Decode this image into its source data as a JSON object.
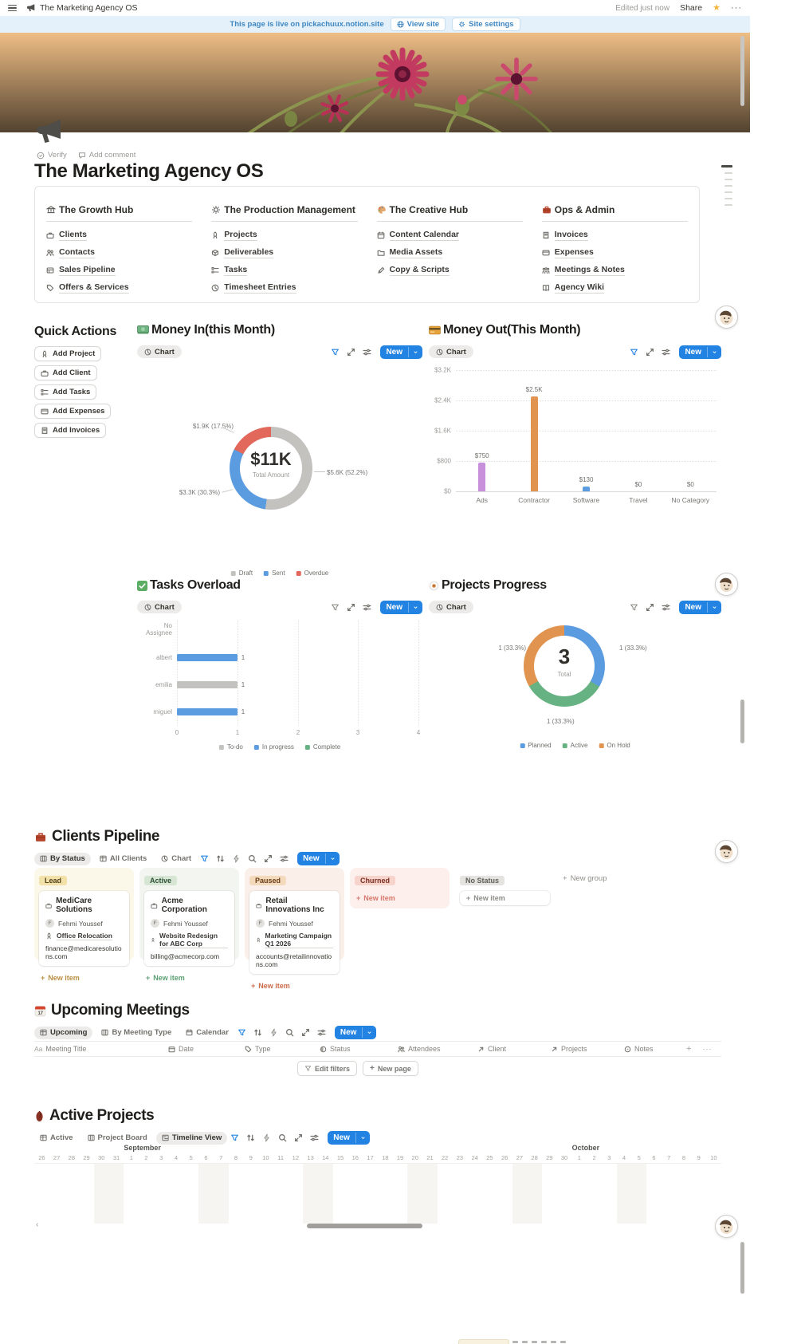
{
  "topbar": {
    "title": "The Marketing Agency OS",
    "edited": "Edited just now",
    "share": "Share",
    "more": "···"
  },
  "banner": {
    "message": "This page is live on pickachuux.notion.site",
    "view_site": "View site",
    "site_settings": "Site settings"
  },
  "page_header": {
    "verify": "Verify",
    "add_comment": "Add comment",
    "title": "The Marketing Agency OS"
  },
  "toc": {
    "columns": [
      {
        "icon": "bank-icon",
        "title": "The Growth Hub",
        "items": [
          {
            "icon": "briefcase-icon",
            "label": "Clients"
          },
          {
            "icon": "people-icon",
            "label": "Contacts"
          },
          {
            "icon": "pipeline-icon",
            "label": "Sales Pipeline"
          },
          {
            "icon": "tag-icon",
            "label": "Offers & Services"
          }
        ]
      },
      {
        "icon": "gear-icon",
        "title": "The Production Management",
        "items": [
          {
            "icon": "rocket-icon",
            "label": "Projects"
          },
          {
            "icon": "box-icon",
            "label": "Deliverables"
          },
          {
            "icon": "checklist-icon",
            "label": "Tasks"
          },
          {
            "icon": "clock-icon",
            "label": "Timesheet Entries"
          }
        ]
      },
      {
        "icon": "palette-icon",
        "title": "The Creative Hub",
        "items": [
          {
            "icon": "calendar-icon",
            "label": "Content Calendar"
          },
          {
            "icon": "folder-icon",
            "label": "Media Assets"
          },
          {
            "icon": "pen-icon",
            "label": "Copy & Scripts"
          }
        ]
      },
      {
        "icon": "briefcase-red-icon",
        "title": "Ops & Admin",
        "items": [
          {
            "icon": "receipt-icon",
            "label": "Invoices"
          },
          {
            "icon": "card-icon",
            "label": "Expenses"
          },
          {
            "icon": "meeting-icon",
            "label": "Meetings & Notes"
          },
          {
            "icon": "book-icon",
            "label": "Agency Wiki"
          }
        ]
      }
    ]
  },
  "quick_actions": {
    "title": "Quick Actions",
    "buttons": [
      {
        "icon": "rocket-icon",
        "label": "Add Project"
      },
      {
        "icon": "briefcase-icon",
        "label": "Add Client"
      },
      {
        "icon": "checklist-icon",
        "label": "Add Tasks"
      },
      {
        "icon": "card-icon",
        "label": "Add Expenses"
      },
      {
        "icon": "receipt-icon",
        "label": "Add Invoices"
      }
    ]
  },
  "ui": {
    "chart_view": "Chart",
    "new": "New",
    "new_item": "New item",
    "new_group": "New group",
    "edit_filters": "Edit filters",
    "new_page": "New page",
    "plus": "+",
    "accent": "#2383e2"
  },
  "blocks": {
    "money_in": {
      "title": "Money In(this Month)"
    },
    "money_out": {
      "title": "Money Out(This Month)"
    },
    "tasks": {
      "title": "Tasks Overload"
    },
    "projects": {
      "title": "Projects Progress"
    }
  },
  "chart_data": [
    {
      "type": "donut",
      "title": "Money In(this Month)",
      "center": {
        "value": "$11K",
        "label": "Total Amount"
      },
      "slices": [
        {
          "name": "Draft",
          "value": "$5.6K",
          "pct": 52.2,
          "label": "$5.6K (52.2%)",
          "color": "#c3c2bf"
        },
        {
          "name": "Sent",
          "value": "$3.3K",
          "pct": 30.3,
          "label": "$3.3K (30.3%)",
          "color": "#5b9be0"
        },
        {
          "name": "Overdue",
          "value": "$1.9K",
          "pct": 17.5,
          "label": "$1.9K (17.5%)",
          "color": "#e2685c"
        }
      ]
    },
    {
      "type": "bar",
      "title": "Money Out(This Month)",
      "categories": [
        "Ads",
        "Contractor",
        "Software",
        "Travel",
        "No Category"
      ],
      "values": [
        750,
        2500,
        130,
        0,
        0
      ],
      "value_labels": [
        "$750",
        "$2.5K",
        "$130",
        "$0",
        "$0"
      ],
      "colors": [
        "#c88fdb",
        "#e0944f",
        "#5b9be0",
        "#c3c2bf",
        "#c3c2bf"
      ],
      "ymax": 3200,
      "yticks": [
        "$3.2K",
        "$2.4K",
        "$1.6K",
        "$800",
        "$0"
      ],
      "grid": true
    },
    {
      "type": "hbar",
      "title": "Tasks Overload",
      "categories": [
        "No Assignee",
        "albert",
        "emilia",
        "miguel"
      ],
      "values": [
        0,
        1,
        1,
        1
      ],
      "value_labels": [
        "",
        "1",
        "1",
        "1"
      ],
      "colors": [
        "#c3c2bf",
        "#5b9be0",
        "#c3c2bf",
        "#5b9be0"
      ],
      "xmax": 4,
      "xticks": [
        "0",
        "1",
        "2",
        "3",
        "4"
      ],
      "legend": [
        {
          "label": "To-do",
          "color": "#c3c2bf"
        },
        {
          "label": "In progress",
          "color": "#5b9be0"
        },
        {
          "label": "Complete",
          "color": "#67b283"
        }
      ]
    },
    {
      "type": "donut",
      "title": "Projects Progress",
      "center": {
        "value": "3",
        "label": "Total"
      },
      "slices": [
        {
          "name": "Planned",
          "value": 1,
          "pct": 33.4,
          "label": "1 (33.3%)",
          "color": "#5b9be0"
        },
        {
          "name": "Active",
          "value": 1,
          "pct": 33.3,
          "label": "1 (33.3%)",
          "color": "#67b283"
        },
        {
          "name": "On Hold",
          "value": 1,
          "pct": 33.3,
          "label": "1 (33.3%)",
          "color": "#e0944f"
        }
      ]
    }
  ],
  "pipeline": {
    "title": "Clients Pipeline",
    "tabs": [
      {
        "icon": "board-icon",
        "label": "By Status"
      },
      {
        "icon": "table-icon",
        "label": "All Clients"
      },
      {
        "icon": "pie-icon",
        "label": "Chart"
      }
    ],
    "groups": [
      {
        "badge": "Lead",
        "badge_bg": "#f2e1a8",
        "badge_fg": "#53421a",
        "col_bg": "#fbf7e9",
        "new_fg": "#b98f42",
        "card": {
          "title": "MediCare Solutions",
          "person": "Fehmi Youssef",
          "avatar": "F",
          "project": "Office Relocation",
          "email": "finance@medicaresolutions.com"
        }
      },
      {
        "badge": "Active",
        "badge_bg": "#d7e6d4",
        "badge_fg": "#2c4f36",
        "col_bg": "#f3f5f1",
        "new_fg": "#5a9f72",
        "card": {
          "title": "Acme Corporation",
          "person": "Fehmi Youssef",
          "avatar": "F",
          "project": "Website Redesign for ABC Corp",
          "email": "billing@acmecorp.com"
        }
      },
      {
        "badge": "Paused",
        "badge_bg": "#f4dabd",
        "badge_fg": "#6b4018",
        "col_bg": "#fbf0e9",
        "new_fg": "#cd6a49",
        "card": {
          "title": "Retail Innovations Inc",
          "person": "Fehmi Youssef",
          "avatar": "F",
          "project": "Marketing Campaign Q1 2026",
          "email": "accounts@retailinnovations.com"
        }
      },
      {
        "badge": "Churned",
        "badge_bg": "#f6d4cc",
        "badge_fg": "#7d2e21",
        "col_bg": "#fdefec",
        "new_fg": "#d8776b",
        "card": null
      },
      {
        "badge": "No Status",
        "badge_bg": "#e4e3e0",
        "badge_fg": "#5f5e5a",
        "col_bg": "transparent",
        "new_fg": "#8f8d89",
        "card": null
      }
    ]
  },
  "meetings": {
    "title": "Upcoming Meetings",
    "tabs": [
      {
        "icon": "table-icon",
        "label": "Upcoming"
      },
      {
        "icon": "board-icon",
        "label": "By Meeting Type"
      },
      {
        "icon": "calendar-icon",
        "label": "Calendar"
      }
    ],
    "columns": [
      {
        "icon": "text-icon",
        "label": "Meeting Title"
      },
      {
        "icon": "calendar-icon",
        "label": "Date"
      },
      {
        "icon": "tag-icon",
        "label": "Type"
      },
      {
        "icon": "status-icon",
        "label": "Status"
      },
      {
        "icon": "people-icon",
        "label": "Attendees"
      },
      {
        "icon": "relation-icon",
        "label": "Client"
      },
      {
        "icon": "relation-icon",
        "label": "Projects"
      },
      {
        "icon": "rollup-icon",
        "label": "Notes"
      }
    ]
  },
  "active_projects": {
    "title": "Active Projects",
    "tabs": [
      {
        "icon": "table-icon",
        "label": "Active"
      },
      {
        "icon": "board-icon",
        "label": "Project Board"
      },
      {
        "icon": "timeline-icon",
        "label": "Timeline View"
      }
    ],
    "timeline": {
      "months": [
        {
          "label": "September",
          "col": 6
        },
        {
          "label": "October",
          "col": 36
        }
      ],
      "days": [
        {
          "d": 26
        },
        {
          "d": 27
        },
        {
          "d": 28
        },
        {
          "d": 29
        },
        {
          "d": 30,
          "w": 1
        },
        {
          "d": 31,
          "w": 1
        },
        {
          "d": 1
        },
        {
          "d": 2
        },
        {
          "d": 3
        },
        {
          "d": 4
        },
        {
          "d": 5
        },
        {
          "d": 6,
          "w": 1
        },
        {
          "d": 7,
          "w": 1
        },
        {
          "d": 8
        },
        {
          "d": 9
        },
        {
          "d": 10
        },
        {
          "d": 11
        },
        {
          "d": 12
        },
        {
          "d": 13,
          "w": 1
        },
        {
          "d": 14,
          "w": 1
        },
        {
          "d": 15
        },
        {
          "d": 16
        },
        {
          "d": 17
        },
        {
          "d": 18
        },
        {
          "d": 19
        },
        {
          "d": 20,
          "w": 1
        },
        {
          "d": 21,
          "w": 1
        },
        {
          "d": 22
        },
        {
          "d": 23
        },
        {
          "d": 24
        },
        {
          "d": 25
        },
        {
          "d": 26
        },
        {
          "d": 27,
          "w": 1
        },
        {
          "d": 28,
          "w": 1
        },
        {
          "d": 29
        },
        {
          "d": 30
        },
        {
          "d": 1
        },
        {
          "d": 2
        },
        {
          "d": 3
        },
        {
          "d": 4,
          "w": 1
        },
        {
          "d": 5,
          "w": 1
        },
        {
          "d": 6
        },
        {
          "d": 7
        },
        {
          "d": 8
        },
        {
          "d": 9
        },
        {
          "d": 10
        }
      ]
    }
  }
}
